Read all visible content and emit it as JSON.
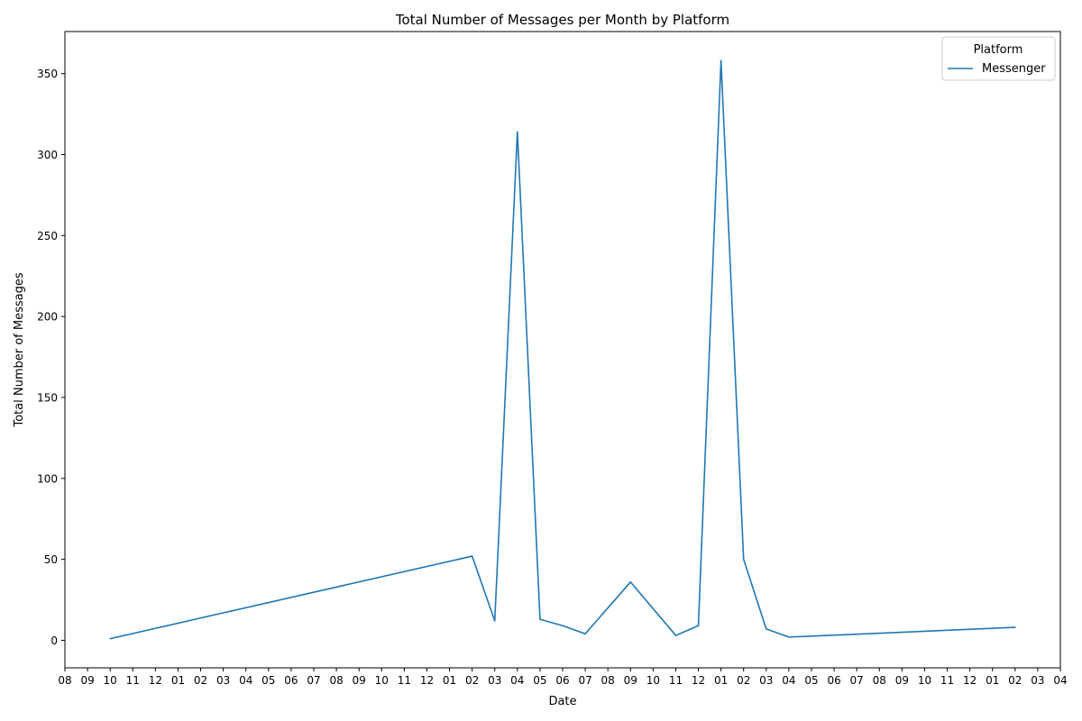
{
  "chart_data": {
    "type": "line",
    "title": "Total Number of Messages per Month by Platform",
    "xlabel": "Date",
    "ylabel": "Total Number of Messages",
    "ylim": [
      -17,
      376
    ],
    "yticks": [
      0,
      50,
      100,
      150,
      200,
      250,
      300,
      350
    ],
    "xtick_labels": [
      "08",
      "09",
      "10",
      "11",
      "12",
      "01",
      "02",
      "03",
      "04",
      "05",
      "06",
      "07",
      "08",
      "09",
      "10",
      "11",
      "12",
      "01",
      "02",
      "03",
      "04",
      "05",
      "06",
      "07",
      "08",
      "09",
      "10",
      "11",
      "12",
      "01",
      "02",
      "03",
      "04",
      "05",
      "06",
      "07",
      "08",
      "09",
      "10",
      "11",
      "12",
      "01",
      "02",
      "03",
      "04"
    ],
    "legend": {
      "title": "Platform",
      "placement": "top-right"
    },
    "grid": false,
    "series": [
      {
        "name": "Messenger",
        "color": "#1f77b4",
        "points": [
          {
            "tick": 2,
            "value": 1
          },
          {
            "tick": 18,
            "value": 52
          },
          {
            "tick": 19,
            "value": 12
          },
          {
            "tick": 20,
            "value": 314
          },
          {
            "tick": 21,
            "value": 13
          },
          {
            "tick": 22,
            "value": 9
          },
          {
            "tick": 23,
            "value": 4
          },
          {
            "tick": 25,
            "value": 36
          },
          {
            "tick": 27,
            "value": 3
          },
          {
            "tick": 28,
            "value": 9
          },
          {
            "tick": 29,
            "value": 358
          },
          {
            "tick": 30,
            "value": 50
          },
          {
            "tick": 31,
            "value": 7
          },
          {
            "tick": 32,
            "value": 2
          },
          {
            "tick": 42,
            "value": 8
          }
        ]
      }
    ]
  }
}
